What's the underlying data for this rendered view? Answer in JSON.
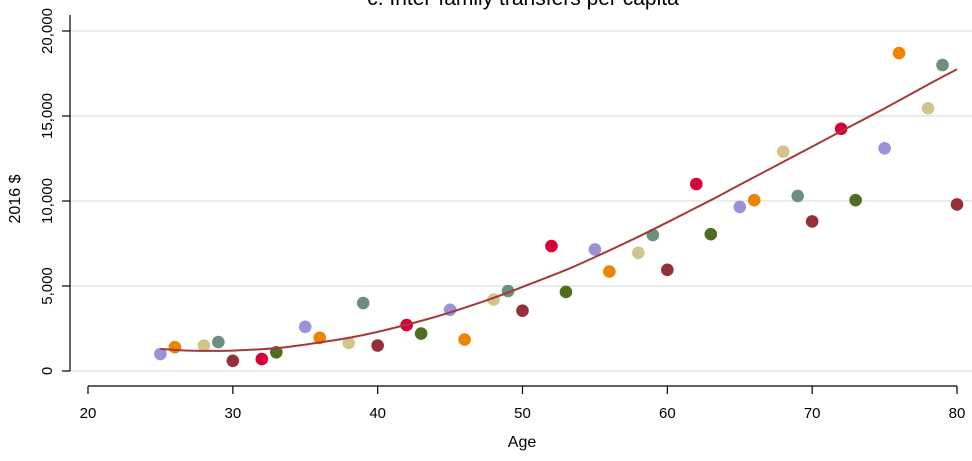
{
  "chart_data": {
    "type": "scatter",
    "title": "c. Inter-family transfers per capita",
    "xlabel": "Age",
    "ylabel": "2016 $",
    "xlim": [
      20,
      80
    ],
    "ylim": [
      0,
      20000
    ],
    "xticks": [
      "20",
      "30",
      "40",
      "50",
      "60",
      "70",
      "80"
    ],
    "yticks": [
      "0",
      "5,000",
      "10,000",
      "15,000",
      "20,000"
    ],
    "grid": true,
    "legend": "none",
    "points": [
      {
        "x": 25,
        "y": 1000,
        "color": "#9a91d8"
      },
      {
        "x": 26,
        "y": 1400,
        "color": "#ed8500"
      },
      {
        "x": 28,
        "y": 1500,
        "color": "#d2c48a"
      },
      {
        "x": 29,
        "y": 1700,
        "color": "#6c8f7e"
      },
      {
        "x": 30,
        "y": 600,
        "color": "#953038"
      },
      {
        "x": 32,
        "y": 700,
        "color": "#d6003a"
      },
      {
        "x": 33,
        "y": 1100,
        "color": "#4f6e22"
      },
      {
        "x": 35,
        "y": 2600,
        "color": "#9a91d8"
      },
      {
        "x": 36,
        "y": 1950,
        "color": "#ed8500"
      },
      {
        "x": 38,
        "y": 1650,
        "color": "#d2c48a"
      },
      {
        "x": 39,
        "y": 4000,
        "color": "#6c8f7e"
      },
      {
        "x": 40,
        "y": 1500,
        "color": "#953038"
      },
      {
        "x": 42,
        "y": 2700,
        "color": "#d6003a"
      },
      {
        "x": 43,
        "y": 2200,
        "color": "#4f6e22"
      },
      {
        "x": 45,
        "y": 3600,
        "color": "#9a91d8"
      },
      {
        "x": 46,
        "y": 1850,
        "color": "#ed8500"
      },
      {
        "x": 48,
        "y": 4200,
        "color": "#d2c48a"
      },
      {
        "x": 49,
        "y": 4700,
        "color": "#6c8f7e"
      },
      {
        "x": 50,
        "y": 3550,
        "color": "#953038"
      },
      {
        "x": 52,
        "y": 7350,
        "color": "#d6003a"
      },
      {
        "x": 53,
        "y": 4650,
        "color": "#4f6e22"
      },
      {
        "x": 55,
        "y": 7150,
        "color": "#9a91d8"
      },
      {
        "x": 56,
        "y": 5850,
        "color": "#ed8500"
      },
      {
        "x": 58,
        "y": 6950,
        "color": "#d2c48a"
      },
      {
        "x": 59,
        "y": 8000,
        "color": "#6c8f7e"
      },
      {
        "x": 60,
        "y": 5950,
        "color": "#953038"
      },
      {
        "x": 62,
        "y": 11000,
        "color": "#d6003a"
      },
      {
        "x": 63,
        "y": 8050,
        "color": "#4f6e22"
      },
      {
        "x": 65,
        "y": 9650,
        "color": "#9a91d8"
      },
      {
        "x": 66,
        "y": 10050,
        "color": "#ed8500"
      },
      {
        "x": 68,
        "y": 12900,
        "color": "#d2c48a"
      },
      {
        "x": 69,
        "y": 10300,
        "color": "#6c8f7e"
      },
      {
        "x": 70,
        "y": 8800,
        "color": "#953038"
      },
      {
        "x": 72,
        "y": 14250,
        "color": "#d6003a"
      },
      {
        "x": 73,
        "y": 10050,
        "color": "#4f6e22"
      },
      {
        "x": 75,
        "y": 13100,
        "color": "#9a91d8"
      },
      {
        "x": 76,
        "y": 18700,
        "color": "#ed8500"
      },
      {
        "x": 78,
        "y": 15450,
        "color": "#d2c48a"
      },
      {
        "x": 79,
        "y": 18000,
        "color": "#6c8f7e"
      },
      {
        "x": 80,
        "y": 9800,
        "color": "#953038"
      }
    ],
    "fit_line": {
      "color": "#a5383a",
      "x": [
        25,
        27,
        30,
        33,
        35,
        38,
        40,
        43,
        45,
        48,
        50,
        53,
        55,
        58,
        60,
        63,
        65,
        68,
        70,
        73,
        75,
        78,
        80
      ],
      "y": [
        1300,
        1200,
        1200,
        1350,
        1550,
        1950,
        2300,
        2950,
        3450,
        4300,
        4950,
        5950,
        6700,
        7900,
        8750,
        10050,
        10950,
        12300,
        13200,
        14550,
        15450,
        16850,
        17750
      ]
    }
  }
}
